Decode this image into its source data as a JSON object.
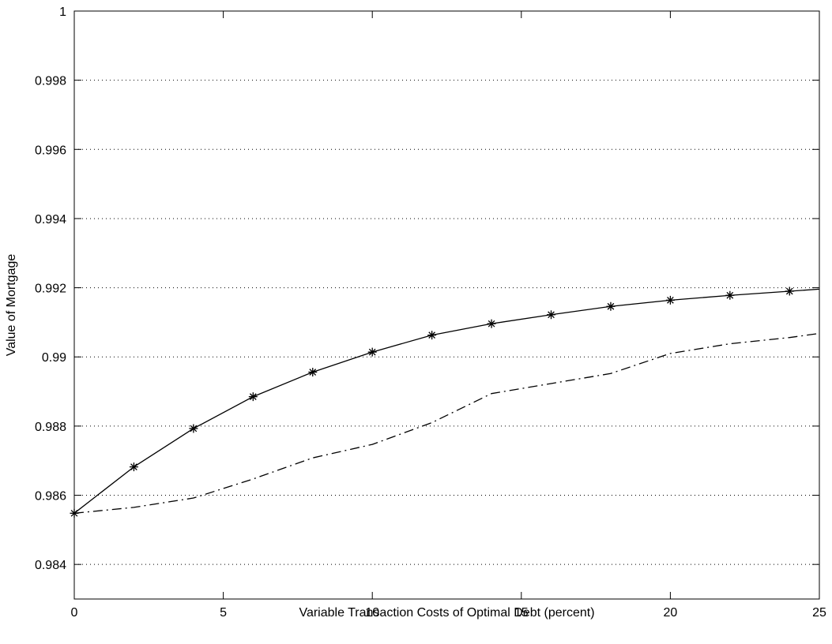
{
  "chart_data": {
    "type": "line",
    "title": "",
    "xlabel": "Variable Transaction Costs of Optimal Debt (percent)",
    "ylabel": "Value of Mortgage",
    "xlim": [
      0,
      25
    ],
    "ylim": [
      0.983,
      1.0
    ],
    "xticks": [
      0,
      5,
      10,
      15,
      20,
      25
    ],
    "xtick_labels": [
      "0",
      "5",
      "10",
      "15",
      "20",
      "25"
    ],
    "yticks": [
      0.984,
      0.986,
      0.988,
      0.99,
      0.992,
      0.994,
      0.996,
      0.998,
      1.0
    ],
    "ytick_labels": [
      "0.984",
      "0.986",
      "0.988",
      "0.99",
      "0.992",
      "0.994",
      "0.996",
      "0.998",
      "1"
    ],
    "grid": "horizontal-dotted",
    "legend": "none",
    "series": [
      {
        "style": "solid-with-asterisk-markers",
        "color": "#000000",
        "x": [
          0,
          2,
          4,
          6,
          8,
          10,
          12,
          14,
          16,
          18,
          20,
          22,
          24,
          25
        ],
        "y": [
          0.98548,
          0.98682,
          0.98793,
          0.98885,
          0.98956,
          0.99014,
          0.99063,
          0.99096,
          0.99122,
          0.99146,
          0.99164,
          0.99178,
          0.9919,
          0.99196
        ],
        "markers": [
          true,
          true,
          true,
          true,
          true,
          true,
          true,
          true,
          true,
          true,
          true,
          true,
          true,
          false
        ]
      },
      {
        "style": "dash-dot",
        "color": "#000000",
        "x": [
          0,
          2,
          4,
          6,
          8,
          10,
          12,
          14,
          16,
          18,
          20,
          22,
          24,
          25
        ],
        "y": [
          0.98548,
          0.98565,
          0.98592,
          0.98647,
          0.98708,
          0.98747,
          0.9881,
          0.98894,
          0.98923,
          0.98952,
          0.9901,
          0.99038,
          0.99056,
          0.99068
        ],
        "markers": [
          false,
          false,
          false,
          false,
          false,
          false,
          false,
          false,
          false,
          false,
          false,
          false,
          false,
          false
        ]
      }
    ]
  }
}
